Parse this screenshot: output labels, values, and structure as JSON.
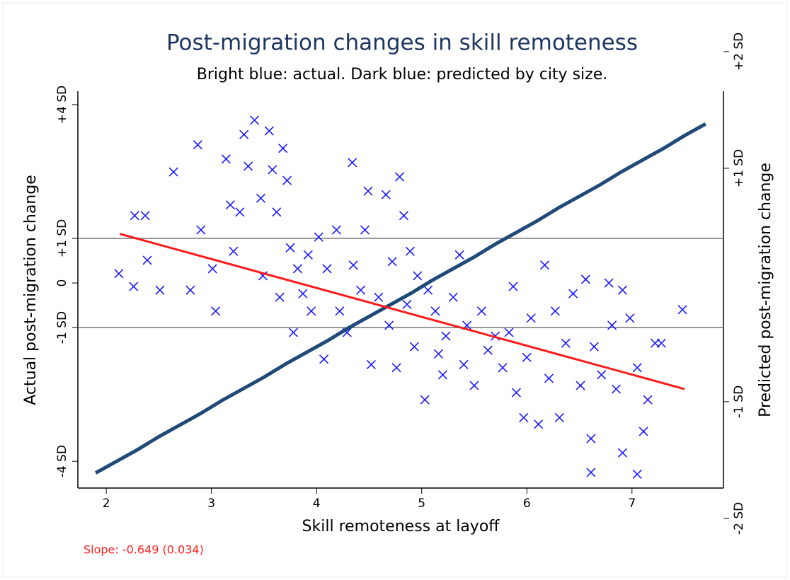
{
  "chart_data": {
    "type": "scatter",
    "title": "Post-migration changes in skill remoteness",
    "subtitle": "Bright blue: actual. Dark blue: predicted by city size.",
    "x_label": "Skill remoteness at layoff",
    "y_label": "Actual post-migration change",
    "y2_label": "Predicted post-migration change",
    "annotation": "Slope: -0.649 (0.034)",
    "annotation_color": "#ff2020",
    "xlim": [
      1.73,
      7.87
    ],
    "xticks": [
      2,
      3,
      4,
      5,
      6,
      7
    ],
    "ylim": [
      -4.6,
      4.3
    ],
    "yticks": [
      {
        "value": 4,
        "label": "+4 SD"
      },
      {
        "value": 1,
        "label": "+1 SD"
      },
      0,
      {
        "value": -1,
        "label": "-1 SD"
      },
      {
        "value": -4,
        "label": "-4 SD"
      }
    ],
    "y2lim": [
      -1.74,
      1.66
    ],
    "y2ticks": [
      {
        "value": 2,
        "label": "+2 SD"
      },
      {
        "value": 1,
        "label": "+1 SD"
      },
      {
        "value": -1,
        "label": "-1 SD"
      },
      {
        "value": -2,
        "label": "-2 SD"
      }
    ],
    "hlines": [
      1,
      -1
    ],
    "series": [
      {
        "marker": "x",
        "color": "#1a1aff",
        "x": [
          2.12,
          2.26,
          2.37,
          2.27,
          2.39,
          2.51,
          2.64,
          2.87,
          2.9,
          2.8,
          3.01,
          3.04,
          3.14,
          3.18,
          3.21,
          3.27,
          3.31,
          3.35,
          3.41,
          3.47,
          3.49,
          3.55,
          3.58,
          3.62,
          3.65,
          3.68,
          3.72,
          3.75,
          3.78,
          3.82,
          3.87,
          3.92,
          3.95,
          4.02,
          4.07,
          4.1,
          4.19,
          4.22,
          4.29,
          4.34,
          4.35,
          4.42,
          4.46,
          4.49,
          4.52,
          4.59,
          4.66,
          4.69,
          4.72,
          4.76,
          4.79,
          4.83,
          4.86,
          4.89,
          4.93,
          4.96,
          5.03,
          5.06,
          5.13,
          5.16,
          5.2,
          5.23,
          5.3,
          5.36,
          5.4,
          5.43,
          5.5,
          5.57,
          5.63,
          5.7,
          5.77,
          5.83,
          5.87,
          5.9,
          5.97,
          6.0,
          6.04,
          6.11,
          6.17,
          6.21,
          6.27,
          6.31,
          6.37,
          6.44,
          6.51,
          6.56,
          6.61,
          6.64,
          6.71,
          6.78,
          6.81,
          6.85,
          6.91,
          6.98,
          7.05,
          7.11,
          7.15,
          7.22,
          7.28,
          7.48,
          6.61,
          7.05,
          6.91
        ],
        "values": [
          0.21,
          -0.08,
          1.51,
          1.51,
          0.51,
          -0.16,
          2.49,
          3.1,
          1.19,
          -0.16,
          0.32,
          -0.63,
          2.78,
          1.75,
          0.71,
          1.59,
          3.33,
          2.62,
          3.65,
          1.9,
          0.16,
          3.41,
          2.54,
          1.59,
          -0.32,
          3.02,
          2.3,
          0.79,
          -1.11,
          0.32,
          -0.24,
          0.63,
          -0.63,
          1.03,
          -1.71,
          0.32,
          1.19,
          -0.63,
          -1.11,
          2.7,
          0.4,
          -0.16,
          1.19,
          2.06,
          -1.83,
          -0.32,
          1.98,
          -0.95,
          0.48,
          -1.9,
          2.38,
          1.51,
          -0.48,
          0.71,
          -1.43,
          0.16,
          -2.62,
          -0.16,
          -0.63,
          -1.59,
          -2.06,
          -1.19,
          -0.32,
          0.63,
          -1.83,
          -0.95,
          -2.3,
          -0.63,
          -1.51,
          -1.19,
          -1.9,
          -1.11,
          -0.08,
          -2.46,
          -3.02,
          -1.67,
          -0.79,
          -3.17,
          0.4,
          -2.14,
          -0.63,
          -3.02,
          -1.35,
          -0.24,
          -2.3,
          0.08,
          -3.49,
          -1.43,
          -2.06,
          0,
          -0.95,
          -2.38,
          -0.16,
          -0.79,
          -1.9,
          -3.33,
          -2.62,
          -1.35,
          -1.35,
          -0.6,
          -4.25,
          -4.29,
          -3.81
        ]
      },
      {
        "marker": "line",
        "axis": "y2",
        "color": "#1f4a78",
        "x": [
          1.9,
          2.1,
          2.3,
          2.5,
          2.7,
          2.9,
          3.1,
          3.3,
          3.5,
          3.7,
          3.9,
          4.1,
          4.3,
          4.5,
          4.7,
          4.9,
          5.1,
          5.3,
          5.5,
          5.7,
          5.9,
          6.1,
          6.3,
          6.5,
          6.7,
          6.9,
          7.1,
          7.3,
          7.5,
          7.7
        ],
        "values": [
          -1.61,
          -1.51,
          -1.41,
          -1.3,
          -1.2,
          -1.1,
          -0.99,
          -0.89,
          -0.79,
          -0.68,
          -0.58,
          -0.48,
          -0.37,
          -0.27,
          -0.17,
          -0.07,
          0.04,
          0.14,
          0.24,
          0.35,
          0.45,
          0.55,
          0.66,
          0.76,
          0.86,
          0.97,
          1.07,
          1.17,
          1.28,
          1.38
        ]
      },
      {
        "marker": "line",
        "color": "#ff1a1a",
        "x": [
          2.13,
          7.5
        ],
        "values": [
          1.1,
          -2.38
        ]
      }
    ]
  }
}
